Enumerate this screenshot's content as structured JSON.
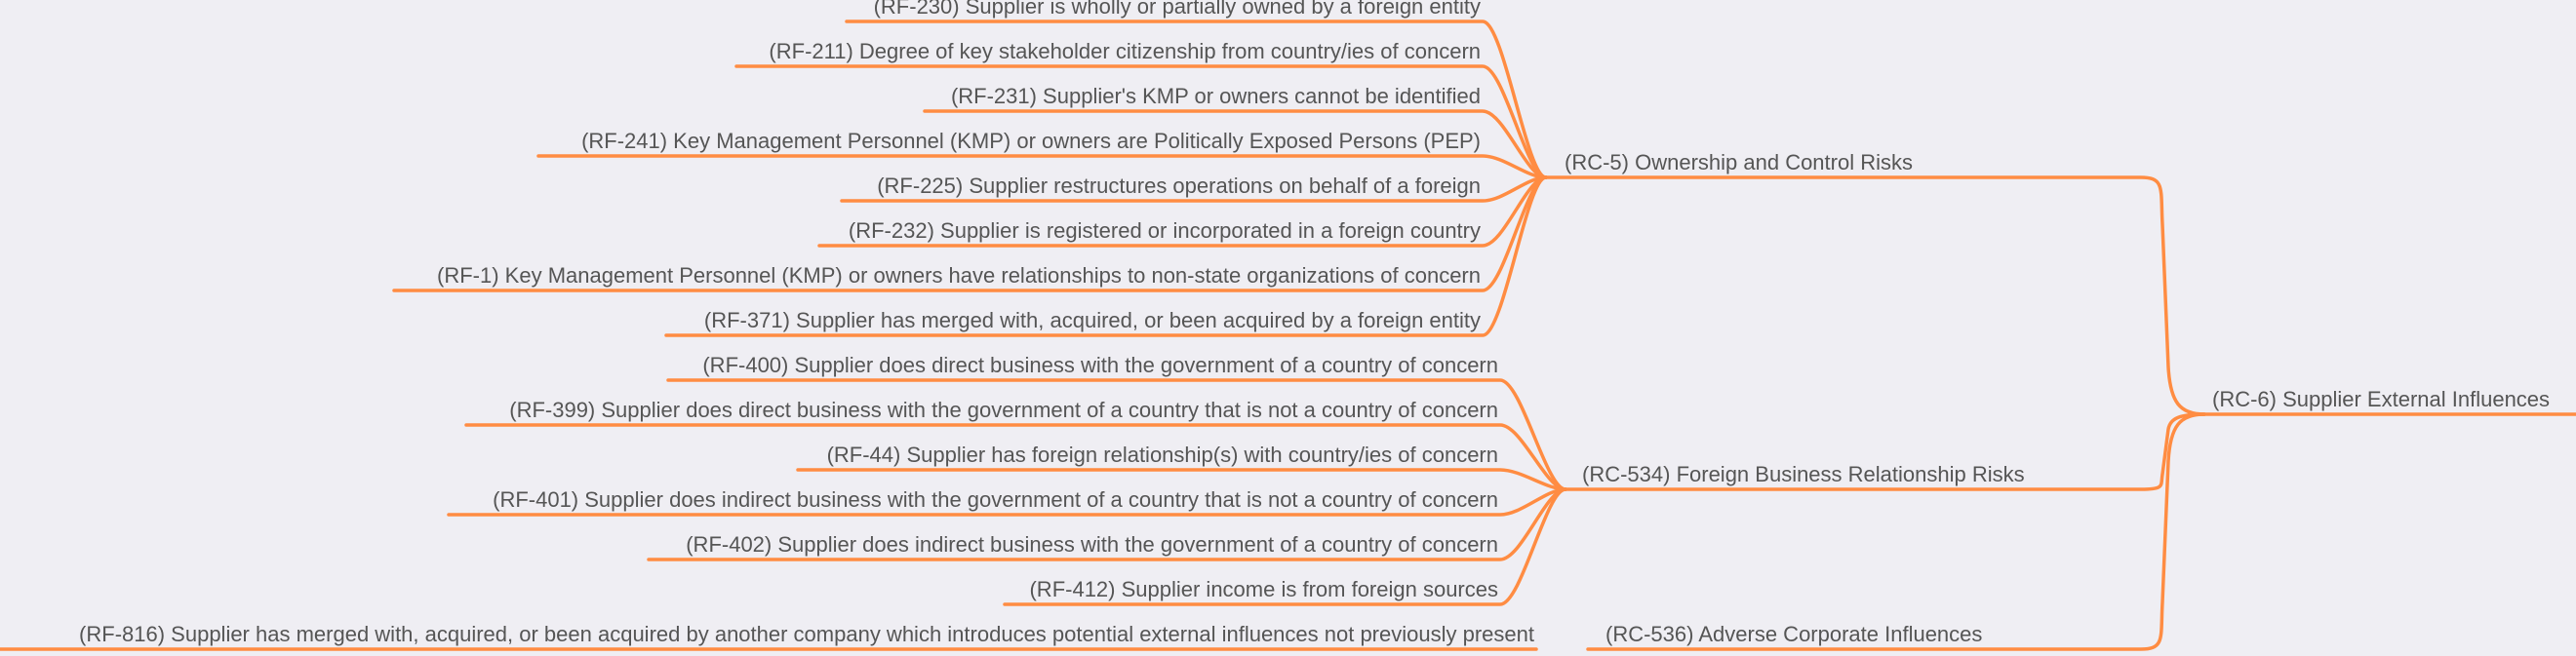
{
  "diagram": {
    "type": "mindmap",
    "line_color": "#ff8c42",
    "text_color": "#555555",
    "background": "#efeef3",
    "root": {
      "label": "(RC-6) Supplier External Influences",
      "children": [
        {
          "label": "(RC-5) Ownership and Control Risks",
          "children": [
            "(RF-230) Supplier is wholly or partially owned by a foreign entity",
            "(RF-211) Degree of key stakeholder citizenship from country/ies of concern",
            "(RF-231) Supplier's KMP or owners cannot be identified",
            "(RF-241) Key Management Personnel (KMP) or owners are Politically Exposed Persons (PEP)",
            "(RF-225) Supplier restructures operations on behalf of a foreign",
            "(RF-232) Supplier is registered or incorporated in a foreign country",
            "(RF-1) Key Management Personnel (KMP) or owners have relationships to non-state organizations of concern",
            "(RF-371) Supplier has merged with, acquired, or been acquired by a foreign entity"
          ]
        },
        {
          "label": "(RC-534) Foreign Business Relationship Risks",
          "children": [
            "(RF-400) Supplier does direct business with the government of a country of concern",
            "(RF-399) Supplier does direct business with the government of a country that is not a country of concern",
            "(RF-44) Supplier has foreign relationship(s) with country/ies of concern",
            "(RF-401) Supplier does indirect business with the government of a country that is not a country of concern",
            "(RF-402) Supplier does indirect business with the government of a country of concern",
            "(RF-412) Supplier income is from foreign sources"
          ]
        },
        {
          "label": "(RC-536) Adverse Corporate Influences",
          "children": [
            "(RF-816) Supplier has merged with, acquired, or been acquired by another company which introduces potential external influences not previously present"
          ]
        }
      ]
    }
  }
}
